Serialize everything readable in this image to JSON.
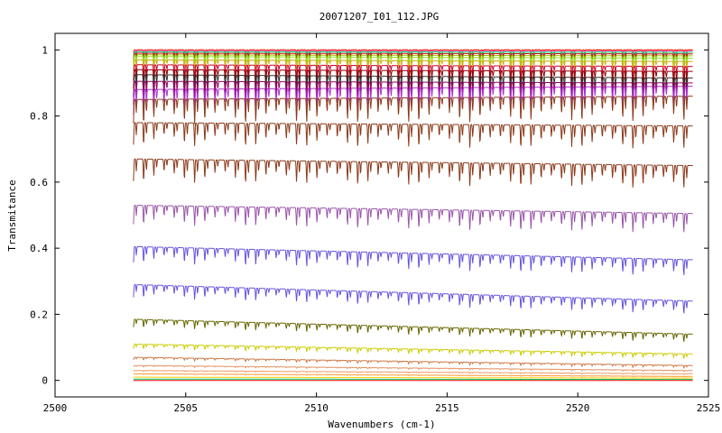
{
  "chart_data": {
    "type": "line",
    "title": "20071207_I01_112.JPG",
    "xlabel": "Wavenumbers (cm-1)",
    "ylabel": "Transmitance",
    "xlim": [
      2500,
      2525
    ],
    "ylim": [
      -0.05,
      1.05
    ],
    "x_ticks": [
      2500,
      2505,
      2510,
      2515,
      2520,
      2525
    ],
    "x_tick_labels": [
      "2500",
      "2505",
      "2510",
      "2515",
      "2520",
      "2525"
    ],
    "y_ticks": [
      0,
      0.2,
      0.4,
      0.6,
      0.8,
      1
    ],
    "y_tick_labels": [
      "0",
      "0.2",
      "0.4",
      "0.6",
      "0.8",
      "1"
    ],
    "grid": false,
    "legend": "none",
    "x_range": [
      2503.0,
      2524.4
    ],
    "line_spacing_cm1": 0.39,
    "series": [
      {
        "start": 1.0,
        "end": 1.0,
        "depth": 0.005,
        "color": "#c8a000"
      },
      {
        "start": 1.0,
        "end": 1.0,
        "depth": 0.008,
        "color": "#ff0000"
      },
      {
        "start": 0.998,
        "end": 0.997,
        "depth": 0.01,
        "color": "#ff66cc"
      },
      {
        "start": 0.995,
        "end": 0.993,
        "depth": 0.015,
        "color": "#00cc66"
      },
      {
        "start": 0.99,
        "end": 0.988,
        "depth": 0.02,
        "color": "#cc0000"
      },
      {
        "start": 0.985,
        "end": 0.982,
        "depth": 0.025,
        "color": "#88cc00"
      },
      {
        "start": 0.98,
        "end": 0.975,
        "depth": 0.03,
        "color": "#99dd33"
      },
      {
        "start": 0.97,
        "end": 0.965,
        "depth": 0.035,
        "color": "#ccaa00"
      },
      {
        "start": 0.955,
        "end": 0.95,
        "depth": 0.05,
        "color": "#cc0033"
      },
      {
        "start": 0.94,
        "end": 0.935,
        "depth": 0.06,
        "color": "#8b0000"
      },
      {
        "start": 0.925,
        "end": 0.915,
        "depth": 0.07,
        "color": "#333333"
      },
      {
        "start": 0.905,
        "end": 0.9,
        "depth": 0.075,
        "color": "#990066"
      },
      {
        "start": 0.88,
        "end": 0.89,
        "depth": 0.08,
        "color": "#aa33cc"
      },
      {
        "start": 0.85,
        "end": 0.86,
        "depth": 0.075,
        "color": "#8b3a1a"
      },
      {
        "start": 0.78,
        "end": 0.77,
        "depth": 0.07,
        "color": "#8b3a1a"
      },
      {
        "start": 0.67,
        "end": 0.65,
        "depth": 0.07,
        "color": "#8b3a1a"
      },
      {
        "start": 0.53,
        "end": 0.505,
        "depth": 0.06,
        "color": "#9955aa"
      },
      {
        "start": 0.405,
        "end": 0.365,
        "depth": 0.05,
        "color": "#6655dd"
      },
      {
        "start": 0.29,
        "end": 0.24,
        "depth": 0.04,
        "color": "#6655dd"
      },
      {
        "start": 0.185,
        "end": 0.14,
        "depth": 0.025,
        "color": "#666600"
      },
      {
        "start": 0.11,
        "end": 0.08,
        "depth": 0.015,
        "color": "#cccc00"
      },
      {
        "start": 0.07,
        "end": 0.045,
        "depth": 0.008,
        "color": "#cc7744"
      },
      {
        "start": 0.045,
        "end": 0.03,
        "depth": 0.004,
        "color": "#e09060"
      },
      {
        "start": 0.03,
        "end": 0.02,
        "depth": 0.003,
        "color": "#ee9966"
      },
      {
        "start": 0.02,
        "end": 0.012,
        "depth": 0.002,
        "color": "#ff9933"
      },
      {
        "start": 0.01,
        "end": 0.007,
        "depth": 0.001,
        "color": "#ffcc00"
      },
      {
        "start": 0.004,
        "end": 0.003,
        "depth": 0.0,
        "color": "#00cc66"
      },
      {
        "start": 0.0,
        "end": 0.0,
        "depth": 0.0,
        "color": "#ff0000"
      }
    ]
  }
}
